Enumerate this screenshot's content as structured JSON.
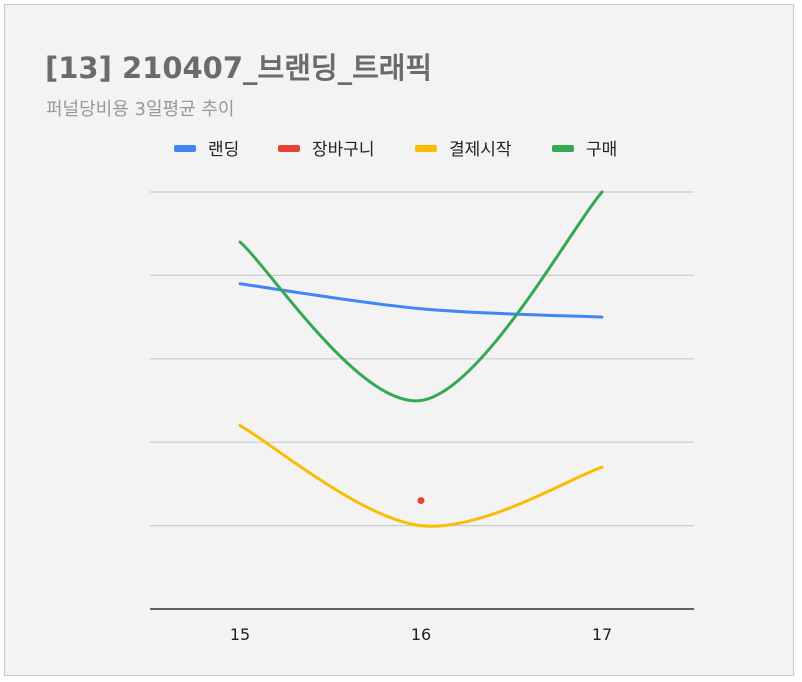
{
  "chart_data": {
    "type": "line",
    "title": "[13] 210407_브랜딩_트래픽",
    "subtitle": "퍼널당비용 3일평균 추이",
    "x": [
      15,
      16,
      17
    ],
    "categories": [
      "15",
      "16",
      "17"
    ],
    "series": [
      {
        "name": "랜딩",
        "color": "#4285f4",
        "values": [
          3.9,
          3.6,
          3.5
        ]
      },
      {
        "name": "장바구니",
        "color": "#ea4335",
        "values": [
          null,
          1.3,
          null
        ]
      },
      {
        "name": "결제시작",
        "color": "#fbbc04",
        "values": [
          2.2,
          1.0,
          1.7
        ]
      },
      {
        "name": "구매",
        "color": "#34a853",
        "values": [
          4.4,
          2.5,
          5.0
        ]
      }
    ],
    "ylim": [
      0,
      5
    ],
    "grid": true,
    "legend_position": "top"
  }
}
